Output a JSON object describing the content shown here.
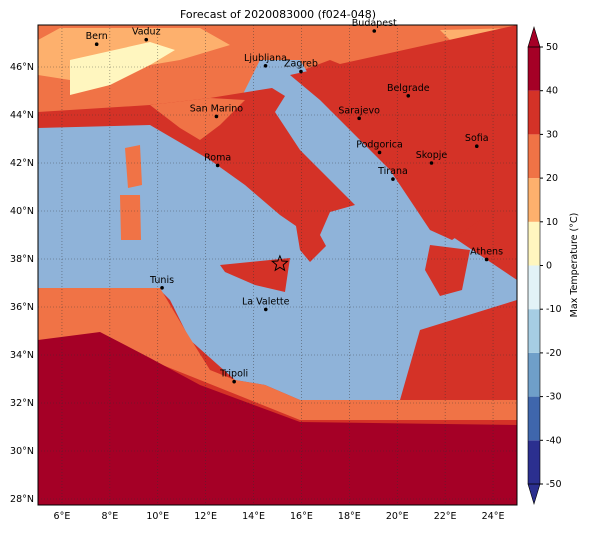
{
  "title": "Forecast of 2020083000 (f024-048)",
  "map": {
    "xlim": [
      5,
      25
    ],
    "ylim": [
      27.75,
      47.75
    ],
    "lon_ticks": [
      {
        "value": 6,
        "label": "6°E"
      },
      {
        "value": 8,
        "label": "8°E"
      },
      {
        "value": 10,
        "label": "10°E"
      },
      {
        "value": 12,
        "label": "12°E"
      },
      {
        "value": 14,
        "label": "14°E"
      },
      {
        "value": 16,
        "label": "16°E"
      },
      {
        "value": 18,
        "label": "18°E"
      },
      {
        "value": 20,
        "label": "20°E"
      },
      {
        "value": 22,
        "label": "22°E"
      },
      {
        "value": 24,
        "label": "24°E"
      }
    ],
    "lat_ticks": [
      {
        "value": 28,
        "label": "28°N"
      },
      {
        "value": 30,
        "label": "30°N"
      },
      {
        "value": 32,
        "label": "32°N"
      },
      {
        "value": 34,
        "label": "34°N"
      },
      {
        "value": 36,
        "label": "36°N"
      },
      {
        "value": 38,
        "label": "38°N"
      },
      {
        "value": 40,
        "label": "40°N"
      },
      {
        "value": 42,
        "label": "42°N"
      },
      {
        "value": 44,
        "label": "44°N"
      },
      {
        "value": 46,
        "label": "46°N"
      }
    ],
    "cities": [
      "Bern",
      "Vaduz",
      "Budapest",
      "Ljubljana",
      "Zagreb",
      "Belgrade",
      "San Marino",
      "Sarajevo",
      "Sofia",
      "Podgorica",
      "Skopje",
      "Roma",
      "Tirana",
      "Athens",
      "Tunis",
      "La Valette",
      "Tripoli"
    ]
  },
  "colorbar": {
    "label": "Max Temperature (°C)",
    "lim": [
      -50,
      50
    ],
    "ticks": [
      -50,
      -40,
      -30,
      -20,
      -10,
      0,
      10,
      20,
      30,
      40,
      50
    ],
    "colors": [
      "#2b2f8f",
      "#3f66ac",
      "#6f9fc9",
      "#a6cde3",
      "#e2f2f7",
      "#fff6bf",
      "#fdb06d",
      "#f07346",
      "#d43227",
      "#a50026"
    ]
  }
}
